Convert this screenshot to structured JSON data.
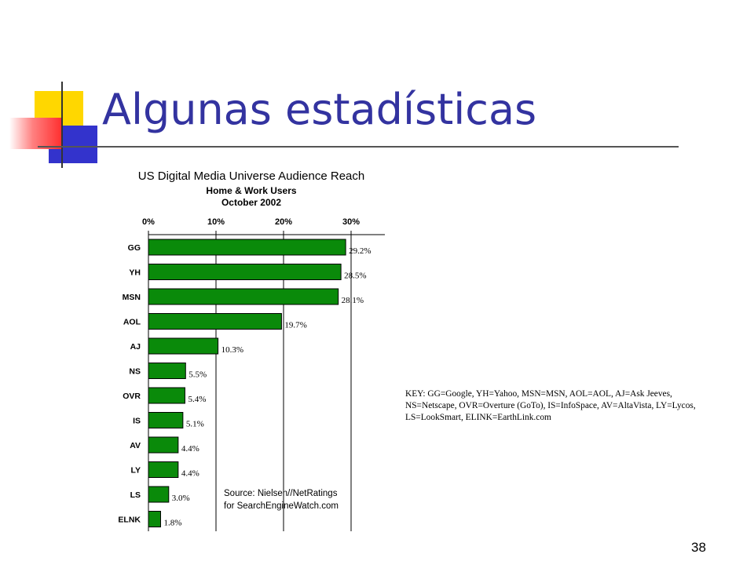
{
  "slide": {
    "title": "Algunas estadísticas",
    "page_number": "38"
  },
  "key_text": "KEY: GG=Google, YH=Yahoo, MSN=MSN, AOL=AOL, AJ=Ask Jeeves, NS=Netscape, OVR=Overture (GoTo), IS=InfoSpace, AV=AltaVista, LY=Lycos, LS=LookSmart, ELINK=EarthLink.com",
  "source_line1": "Source: Nielsen//NetRatings",
  "source_line2": "for SearchEngineWatch.com",
  "colors": {
    "title": "#3333a0",
    "bar": "#0a8a0a",
    "deco_yellow": "#ffd700",
    "deco_blue": "#3333cc",
    "deco_red": "#ff4444"
  },
  "chart_data": {
    "type": "bar",
    "orientation": "horizontal",
    "title": "US Digital Media Universe Audience Reach",
    "subtitle": "Home & Work Users",
    "subtitle2": "October 2002",
    "categories": [
      "GG",
      "YH",
      "MSN",
      "AOL",
      "AJ",
      "NS",
      "OVR",
      "IS",
      "AV",
      "LY",
      "LS",
      "ELNK"
    ],
    "values": [
      29.2,
      28.5,
      28.1,
      19.7,
      10.3,
      5.5,
      5.4,
      5.1,
      4.4,
      4.4,
      3.0,
      1.8
    ],
    "value_labels": [
      "29.2%",
      "28.5%",
      "28.1%",
      "19.7%",
      "10.3%",
      "5.5%",
      "5.4%",
      "5.1%",
      "4.4%",
      "4.4%",
      "3.0%",
      "1.8%"
    ],
    "x_ticks": [
      0,
      10,
      20,
      30
    ],
    "x_tick_labels": [
      "0%",
      "10%",
      "20%",
      "30%"
    ],
    "xlim": [
      0,
      35
    ],
    "grid": true
  }
}
